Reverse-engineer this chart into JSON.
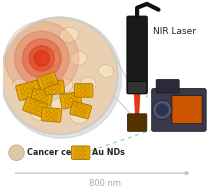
{
  "bg_color": "#ffffff",
  "fig_width": 2.1,
  "fig_height": 1.89,
  "dpi": 100,
  "axis_color": "#bbbbbb",
  "axis_label": "800 nm",
  "axis_label_color": "#aaaaaa",
  "axis_label_fontsize": 6.0,
  "legend_cancer_cell_color": "#ddc8a8",
  "legend_cancer_cell_edge": "#c4aa88",
  "legend_au_nd_color": "#f0b800",
  "legend_au_nd_edge": "#c88800",
  "legend_fontsize": 5.8,
  "legend_cancer_label": "Cancer cell",
  "legend_au_label": "Au NDs",
  "nir_label": "NIR Laser",
  "nir_label_fontsize": 6.5,
  "nir_label_color": "#222222",
  "laser_body_color": "#1a1a1a",
  "laser_body_edge": "#000000",
  "laser_beam_color": "#dd2200",
  "cable_color": "#111111",
  "camera_body_color": "#3a3a4a",
  "camera_body_edge": "#222222",
  "camera_screen_color": "#cc5500",
  "camera_lens_color": "#1a1a2a",
  "dashed_line_color": "#55bb77",
  "circle_bg": "#e8d0b0",
  "cell_fill": "#f2dfc0",
  "cell_edge": "#d0b080",
  "heat_color": "#dd2200",
  "au_color": "#e8a800",
  "au_edge": "#aa7000",
  "magnify_line_color": "#cccccc"
}
